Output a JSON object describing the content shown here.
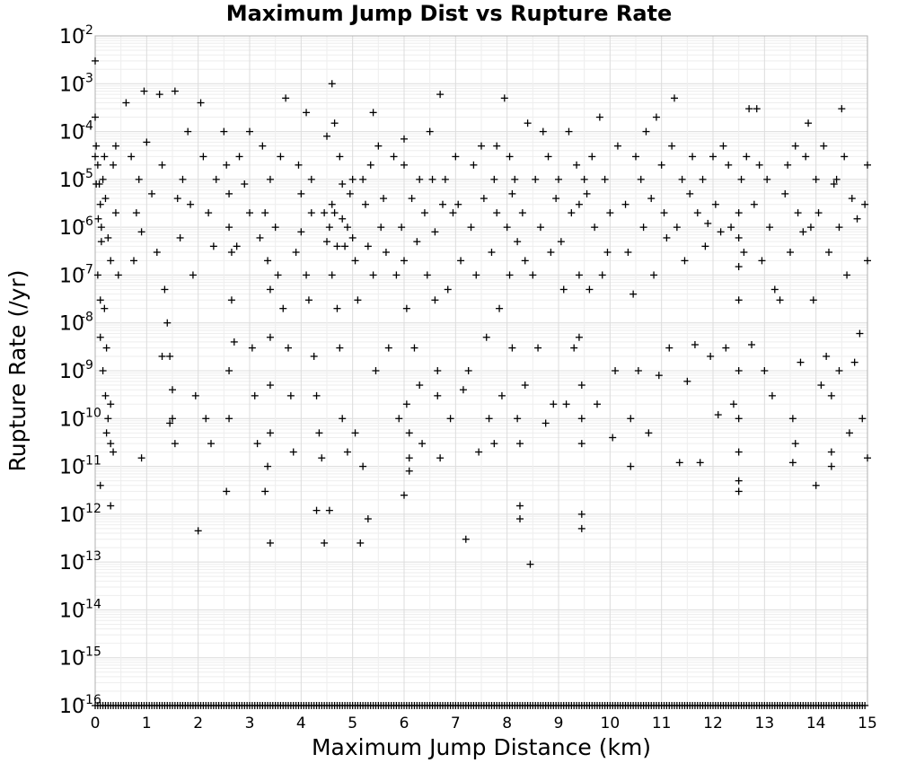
{
  "chart_data": {
    "type": "scatter",
    "title": "Maximum Jump Dist vs Rupture Rate",
    "xlabel": "Maximum Jump Distance (km)",
    "ylabel": "Rupture Rate (/yr)",
    "xlim": [
      0,
      15
    ],
    "ylim": [
      1e-16,
      0.01
    ],
    "yscale": "log",
    "grid": true,
    "legend": "none",
    "marker": "plus",
    "marker_color": "#000000",
    "x_ticks": [
      "0",
      "1",
      "2",
      "3",
      "4",
      "5",
      "6",
      "7",
      "8",
      "9",
      "10",
      "11",
      "12",
      "13",
      "14",
      "15"
    ],
    "y_ticks": [
      {
        "base": "10",
        "exp": "-2"
      },
      {
        "base": "10",
        "exp": "-3"
      },
      {
        "base": "10",
        "exp": "-4"
      },
      {
        "base": "10",
        "exp": "-5"
      },
      {
        "base": "10",
        "exp": "-6"
      },
      {
        "base": "10",
        "exp": "-7"
      },
      {
        "base": "10",
        "exp": "-8"
      },
      {
        "base": "10",
        "exp": "-9"
      },
      {
        "base": "10",
        "exp": "-10"
      },
      {
        "base": "10",
        "exp": "-11"
      },
      {
        "base": "10",
        "exp": "-12"
      },
      {
        "base": "10",
        "exp": "-13"
      },
      {
        "base": "10",
        "exp": "-14"
      },
      {
        "base": "10",
        "exp": "-15"
      },
      {
        "base": "10",
        "exp": "-16"
      }
    ],
    "points": [
      [
        0.0,
        0.003
      ],
      [
        0.0,
        0.0002
      ],
      [
        0.02,
        5e-05
      ],
      [
        0.05,
        2e-05
      ],
      [
        0.08,
        8e-06
      ],
      [
        0.1,
        3e-06
      ],
      [
        0.12,
        1e-06
      ],
      [
        0.15,
        1e-05
      ],
      [
        0.18,
        3e-05
      ],
      [
        0.2,
        4e-06
      ],
      [
        0.25,
        6e-07
      ],
      [
        0.3,
        2e-07
      ],
      [
        0.35,
        2e-05
      ],
      [
        0.4,
        2e-06
      ],
      [
        0.45,
        1e-07
      ],
      [
        0.05,
        1e-07
      ],
      [
        0.1,
        3e-08
      ],
      [
        0.1,
        5e-09
      ],
      [
        0.15,
        1e-09
      ],
      [
        0.2,
        3e-10
      ],
      [
        0.25,
        1e-10
      ],
      [
        0.3,
        3e-11
      ],
      [
        0.35,
        2e-11
      ],
      [
        0.1,
        4e-12
      ],
      [
        0.3,
        1.5e-12
      ],
      [
        0.4,
        5e-05
      ],
      [
        0.0,
        3e-05
      ],
      [
        0.02,
        8e-06
      ],
      [
        0.06,
        1.5e-06
      ],
      [
        0.12,
        5e-07
      ],
      [
        0.18,
        2e-08
      ],
      [
        0.22,
        3e-09
      ],
      [
        0.3,
        2e-10
      ],
      [
        0.22,
        5e-11
      ],
      [
        0.6,
        0.0004
      ],
      [
        0.7,
        3e-05
      ],
      [
        0.8,
        2e-06
      ],
      [
        0.9,
        8e-07
      ],
      [
        0.95,
        0.0007
      ],
      [
        0.75,
        2e-07
      ],
      [
        0.85,
        1e-05
      ],
      [
        1.0,
        6e-05
      ],
      [
        1.1,
        5e-06
      ],
      [
        1.2,
        3e-07
      ],
      [
        1.3,
        2e-05
      ],
      [
        1.35,
        5e-08
      ],
      [
        1.4,
        1e-08
      ],
      [
        1.45,
        2e-09
      ],
      [
        1.5,
        4e-10
      ],
      [
        1.5,
        1e-10
      ],
      [
        1.55,
        3e-11
      ],
      [
        1.45,
        8e-11
      ],
      [
        1.3,
        2e-09
      ],
      [
        1.25,
        0.0006
      ],
      [
        1.6,
        4e-06
      ],
      [
        1.65,
        6e-07
      ],
      [
        0.9,
        1.5e-11
      ],
      [
        1.7,
        1e-05
      ],
      [
        1.8,
        0.0001
      ],
      [
        1.85,
        3e-06
      ],
      [
        1.9,
        1e-07
      ],
      [
        1.95,
        3e-10
      ],
      [
        2.0,
        4.5e-13
      ],
      [
        2.05,
        0.0004
      ],
      [
        2.1,
        3e-05
      ],
      [
        2.2,
        2e-06
      ],
      [
        2.3,
        4e-07
      ],
      [
        2.25,
        3e-11
      ],
      [
        1.55,
        0.0007
      ],
      [
        2.15,
        1e-10
      ],
      [
        2.35,
        1e-05
      ],
      [
        2.5,
        0.0001
      ],
      [
        2.55,
        2e-05
      ],
      [
        2.6,
        5e-06
      ],
      [
        2.6,
        1e-06
      ],
      [
        2.65,
        3e-07
      ],
      [
        2.65,
        3e-08
      ],
      [
        2.6,
        1e-09
      ],
      [
        2.6,
        1e-10
      ],
      [
        2.55,
        3e-12
      ],
      [
        2.7,
        4e-09
      ],
      [
        2.75,
        4e-07
      ],
      [
        2.8,
        3e-05
      ],
      [
        2.9,
        8e-06
      ],
      [
        3.0,
        0.0001
      ],
      [
        3.0,
        2e-06
      ],
      [
        3.05,
        3e-09
      ],
      [
        3.1,
        3e-10
      ],
      [
        3.15,
        3e-11
      ],
      [
        3.2,
        6e-07
      ],
      [
        3.25,
        5e-05
      ],
      [
        3.3,
        2e-06
      ],
      [
        3.35,
        2e-07
      ],
      [
        3.4,
        1e-05
      ],
      [
        3.4,
        5e-08
      ],
      [
        3.4,
        5e-09
      ],
      [
        3.4,
        5e-10
      ],
      [
        3.4,
        5e-11
      ],
      [
        3.35,
        1e-11
      ],
      [
        3.4,
        2.5e-13
      ],
      [
        3.3,
        3e-12
      ],
      [
        3.5,
        1e-06
      ],
      [
        3.55,
        1e-07
      ],
      [
        3.6,
        3e-05
      ],
      [
        3.65,
        2e-08
      ],
      [
        3.7,
        0.0005
      ],
      [
        3.75,
        3e-09
      ],
      [
        3.8,
        3e-10
      ],
      [
        3.85,
        2e-11
      ],
      [
        3.9,
        3e-07
      ],
      [
        3.95,
        2e-05
      ],
      [
        4.0,
        5e-06
      ],
      [
        4.0,
        8e-07
      ],
      [
        4.1,
        0.00025
      ],
      [
        4.1,
        1e-07
      ],
      [
        4.15,
        3e-08
      ],
      [
        4.2,
        1e-05
      ],
      [
        4.25,
        2e-09
      ],
      [
        4.3,
        3e-10
      ],
      [
        4.35,
        5e-11
      ],
      [
        4.4,
        1.5e-11
      ],
      [
        4.45,
        2e-06
      ],
      [
        4.5,
        5e-07
      ],
      [
        4.5,
        8e-05
      ],
      [
        4.55,
        1e-06
      ],
      [
        4.6,
        3e-06
      ],
      [
        4.6,
        1e-07
      ],
      [
        4.6,
        0.001
      ],
      [
        4.65,
        2e-06
      ],
      [
        4.7,
        4e-07
      ],
      [
        4.7,
        2e-08
      ],
      [
        4.75,
        3e-05
      ],
      [
        4.75,
        3e-09
      ],
      [
        4.8,
        1.5e-06
      ],
      [
        4.8,
        1e-10
      ],
      [
        4.85,
        4e-07
      ],
      [
        4.9,
        1e-06
      ],
      [
        4.9,
        2e-11
      ],
      [
        4.95,
        5e-06
      ],
      [
        5.0,
        1e-05
      ],
      [
        5.0,
        6e-07
      ],
      [
        5.05,
        2e-07
      ],
      [
        5.05,
        5e-11
      ],
      [
        5.1,
        3e-08
      ],
      [
        5.15,
        2.5e-13
      ],
      [
        5.2,
        1e-11
      ],
      [
        5.25,
        3e-06
      ],
      [
        5.3,
        4e-07
      ],
      [
        5.3,
        8e-13
      ],
      [
        5.35,
        2e-05
      ],
      [
        5.4,
        1e-07
      ],
      [
        5.45,
        1e-09
      ],
      [
        5.5,
        5e-05
      ],
      [
        5.55,
        1e-06
      ],
      [
        4.45,
        2.5e-13
      ],
      [
        4.55,
        1.2e-12
      ],
      [
        4.3,
        1.2e-12
      ],
      [
        4.8,
        8e-06
      ],
      [
        4.65,
        0.00015
      ],
      [
        5.4,
        0.00025
      ],
      [
        5.2,
        1e-05
      ],
      [
        4.2,
        2e-06
      ],
      [
        5.6,
        4e-06
      ],
      [
        5.65,
        3e-07
      ],
      [
        5.7,
        3e-09
      ],
      [
        5.8,
        3e-05
      ],
      [
        5.85,
        1e-07
      ],
      [
        5.9,
        1e-10
      ],
      [
        5.95,
        1e-06
      ],
      [
        6.0,
        7e-05
      ],
      [
        6.0,
        2e-05
      ],
      [
        6.0,
        2e-07
      ],
      [
        6.05,
        2e-08
      ],
      [
        6.05,
        2e-10
      ],
      [
        6.1,
        5e-11
      ],
      [
        6.1,
        1.5e-11
      ],
      [
        6.15,
        4e-06
      ],
      [
        6.2,
        3e-09
      ],
      [
        6.25,
        5e-07
      ],
      [
        6.3,
        1e-05
      ],
      [
        6.3,
        5e-10
      ],
      [
        6.35,
        3e-11
      ],
      [
        6.4,
        2e-06
      ],
      [
        6.45,
        1e-07
      ],
      [
        6.5,
        0.0001
      ],
      [
        6.55,
        1e-05
      ],
      [
        6.6,
        8e-07
      ],
      [
        6.6,
        3e-08
      ],
      [
        6.65,
        1e-09
      ],
      [
        6.65,
        3e-10
      ],
      [
        6.7,
        0.0006
      ],
      [
        6.7,
        1.5e-11
      ],
      [
        6.75,
        3e-06
      ],
      [
        6.8,
        1e-05
      ],
      [
        6.85,
        5e-08
      ],
      [
        6.9,
        1e-10
      ],
      [
        6.95,
        2e-06
      ],
      [
        6.0,
        2.5e-12
      ],
      [
        6.1,
        8e-12
      ],
      [
        7.0,
        3e-05
      ],
      [
        7.05,
        3e-06
      ],
      [
        7.1,
        2e-07
      ],
      [
        7.15,
        4e-10
      ],
      [
        7.2,
        3e-13
      ],
      [
        7.25,
        1e-09
      ],
      [
        7.3,
        1e-06
      ],
      [
        7.35,
        2e-05
      ],
      [
        7.4,
        1e-07
      ],
      [
        7.45,
        2e-11
      ],
      [
        7.5,
        5e-05
      ],
      [
        7.55,
        4e-06
      ],
      [
        7.6,
        5e-09
      ],
      [
        7.65,
        1e-10
      ],
      [
        7.7,
        3e-07
      ],
      [
        7.75,
        1e-05
      ],
      [
        7.8,
        5e-05
      ],
      [
        7.8,
        2e-06
      ],
      [
        7.85,
        2e-08
      ],
      [
        7.9,
        3e-10
      ],
      [
        7.95,
        0.0005
      ],
      [
        8.0,
        1e-06
      ],
      [
        8.05,
        3e-05
      ],
      [
        8.05,
        1e-07
      ],
      [
        8.1,
        5e-06
      ],
      [
        8.1,
        3e-09
      ],
      [
        8.15,
        1e-05
      ],
      [
        8.2,
        5e-07
      ],
      [
        8.2,
        1e-10
      ],
      [
        8.25,
        3e-11
      ],
      [
        8.25,
        8e-13
      ],
      [
        8.3,
        2e-06
      ],
      [
        8.35,
        2e-07
      ],
      [
        8.35,
        5e-10
      ],
      [
        8.4,
        0.00015
      ],
      [
        8.45,
        9e-14
      ],
      [
        8.5,
        1e-07
      ],
      [
        8.55,
        1e-05
      ],
      [
        8.6,
        3e-09
      ],
      [
        8.65,
        1e-06
      ],
      [
        8.7,
        0.0001
      ],
      [
        8.75,
        8e-11
      ],
      [
        8.8,
        3e-05
      ],
      [
        8.85,
        3e-07
      ],
      [
        8.9,
        2e-10
      ],
      [
        8.95,
        4e-06
      ],
      [
        7.75,
        3e-11
      ],
      [
        8.25,
        1.5e-12
      ],
      [
        9.0,
        1e-05
      ],
      [
        9.05,
        5e-07
      ],
      [
        9.1,
        5e-08
      ],
      [
        9.15,
        2e-10
      ],
      [
        9.2,
        0.0001
      ],
      [
        9.25,
        2e-06
      ],
      [
        9.3,
        3e-09
      ],
      [
        9.35,
        2e-05
      ],
      [
        9.4,
        3e-06
      ],
      [
        9.4,
        1e-07
      ],
      [
        9.4,
        5e-09
      ],
      [
        9.45,
        5e-10
      ],
      [
        9.45,
        1e-10
      ],
      [
        9.45,
        3e-11
      ],
      [
        9.45,
        1e-12
      ],
      [
        9.45,
        5e-13
      ],
      [
        9.5,
        1e-05
      ],
      [
        9.55,
        5e-06
      ],
      [
        9.6,
        5e-08
      ],
      [
        9.65,
        3e-05
      ],
      [
        9.7,
        1e-06
      ],
      [
        9.75,
        2e-10
      ],
      [
        9.8,
        0.0002
      ],
      [
        9.85,
        1e-07
      ],
      [
        9.9,
        1e-05
      ],
      [
        9.95,
        3e-07
      ],
      [
        10.0,
        2e-06
      ],
      [
        10.05,
        4e-11
      ],
      [
        10.1,
        1e-09
      ],
      [
        10.15,
        5e-05
      ],
      [
        10.3,
        3e-06
      ],
      [
        10.35,
        3e-07
      ],
      [
        10.4,
        1e-10
      ],
      [
        10.4,
        1e-11
      ],
      [
        10.45,
        4e-08
      ],
      [
        10.5,
        3e-05
      ],
      [
        10.55,
        1e-09
      ],
      [
        10.6,
        1e-05
      ],
      [
        10.65,
        1e-06
      ],
      [
        10.7,
        0.0001
      ],
      [
        10.75,
        5e-11
      ],
      [
        10.8,
        4e-06
      ],
      [
        10.85,
        1e-07
      ],
      [
        10.9,
        0.0002
      ],
      [
        10.95,
        8e-10
      ],
      [
        11.0,
        2e-05
      ],
      [
        11.05,
        2e-06
      ],
      [
        11.1,
        6e-07
      ],
      [
        11.15,
        3e-09
      ],
      [
        11.2,
        5e-05
      ],
      [
        11.25,
        0.0005
      ],
      [
        11.3,
        1e-06
      ],
      [
        11.35,
        1.2e-11
      ],
      [
        11.4,
        1e-05
      ],
      [
        11.45,
        2e-07
      ],
      [
        11.5,
        6e-10
      ],
      [
        11.55,
        5e-06
      ],
      [
        11.6,
        3e-05
      ],
      [
        11.65,
        3.5e-09
      ],
      [
        11.7,
        2e-06
      ],
      [
        11.75,
        1.2e-11
      ],
      [
        11.8,
        1e-05
      ],
      [
        11.85,
        4e-07
      ],
      [
        11.9,
        1.2e-06
      ],
      [
        11.95,
        2e-09
      ],
      [
        12.0,
        3e-05
      ],
      [
        12.05,
        3e-06
      ],
      [
        12.1,
        1.2e-10
      ],
      [
        12.15,
        8e-07
      ],
      [
        12.2,
        5e-05
      ],
      [
        12.25,
        3e-09
      ],
      [
        12.3,
        2e-05
      ],
      [
        12.35,
        1e-06
      ],
      [
        12.4,
        2e-10
      ],
      [
        12.5,
        2e-06
      ],
      [
        12.5,
        6e-07
      ],
      [
        12.5,
        1.5e-07
      ],
      [
        12.5,
        3e-08
      ],
      [
        12.5,
        1e-09
      ],
      [
        12.5,
        1e-10
      ],
      [
        12.5,
        2e-11
      ],
      [
        12.5,
        5e-12
      ],
      [
        12.5,
        3e-12
      ],
      [
        12.55,
        1e-05
      ],
      [
        12.6,
        3e-07
      ],
      [
        12.65,
        3e-05
      ],
      [
        12.7,
        0.0003
      ],
      [
        12.75,
        3.5e-09
      ],
      [
        12.8,
        3e-06
      ],
      [
        12.85,
        0.0003
      ],
      [
        12.9,
        2e-05
      ],
      [
        12.95,
        2e-07
      ],
      [
        13.0,
        1e-09
      ],
      [
        13.05,
        1e-05
      ],
      [
        13.1,
        1e-06
      ],
      [
        13.15,
        3e-10
      ],
      [
        13.2,
        5e-08
      ],
      [
        13.3,
        3e-08
      ],
      [
        13.4,
        5e-06
      ],
      [
        13.45,
        2e-05
      ],
      [
        13.5,
        3e-07
      ],
      [
        13.55,
        1e-10
      ],
      [
        13.6,
        5e-05
      ],
      [
        13.6,
        3e-11
      ],
      [
        13.65,
        2e-06
      ],
      [
        13.7,
        1.5e-09
      ],
      [
        13.75,
        8e-07
      ],
      [
        13.8,
        3e-05
      ],
      [
        13.85,
        0.00015
      ],
      [
        13.9,
        1e-06
      ],
      [
        13.95,
        3e-08
      ],
      [
        14.0,
        1e-05
      ],
      [
        14.05,
        2e-06
      ],
      [
        14.1,
        5e-10
      ],
      [
        14.15,
        5e-05
      ],
      [
        14.2,
        2e-09
      ],
      [
        14.25,
        3e-07
      ],
      [
        14.3,
        3e-10
      ],
      [
        14.3,
        2e-11
      ],
      [
        14.35,
        8e-06
      ],
      [
        14.4,
        1e-05
      ],
      [
        14.45,
        1e-06
      ],
      [
        14.45,
        1e-09
      ],
      [
        14.5,
        0.0003
      ],
      [
        14.55,
        3e-05
      ],
      [
        14.6,
        1e-07
      ],
      [
        14.65,
        5e-11
      ],
      [
        14.7,
        4e-06
      ],
      [
        14.75,
        1.5e-09
      ],
      [
        14.8,
        1.5e-06
      ],
      [
        14.85,
        6e-09
      ],
      [
        14.9,
        1e-10
      ],
      [
        14.95,
        3e-06
      ],
      [
        15.0,
        2e-05
      ],
      [
        15.0,
        2e-07
      ],
      [
        15.0,
        1.5e-11
      ],
      [
        14.0,
        4e-12
      ],
      [
        13.55,
        1.2e-11
      ],
      [
        14.3,
        1e-11
      ]
    ],
    "floor_value": 1e-16,
    "floor_note": "dense row of points at the bottom of the axis"
  }
}
